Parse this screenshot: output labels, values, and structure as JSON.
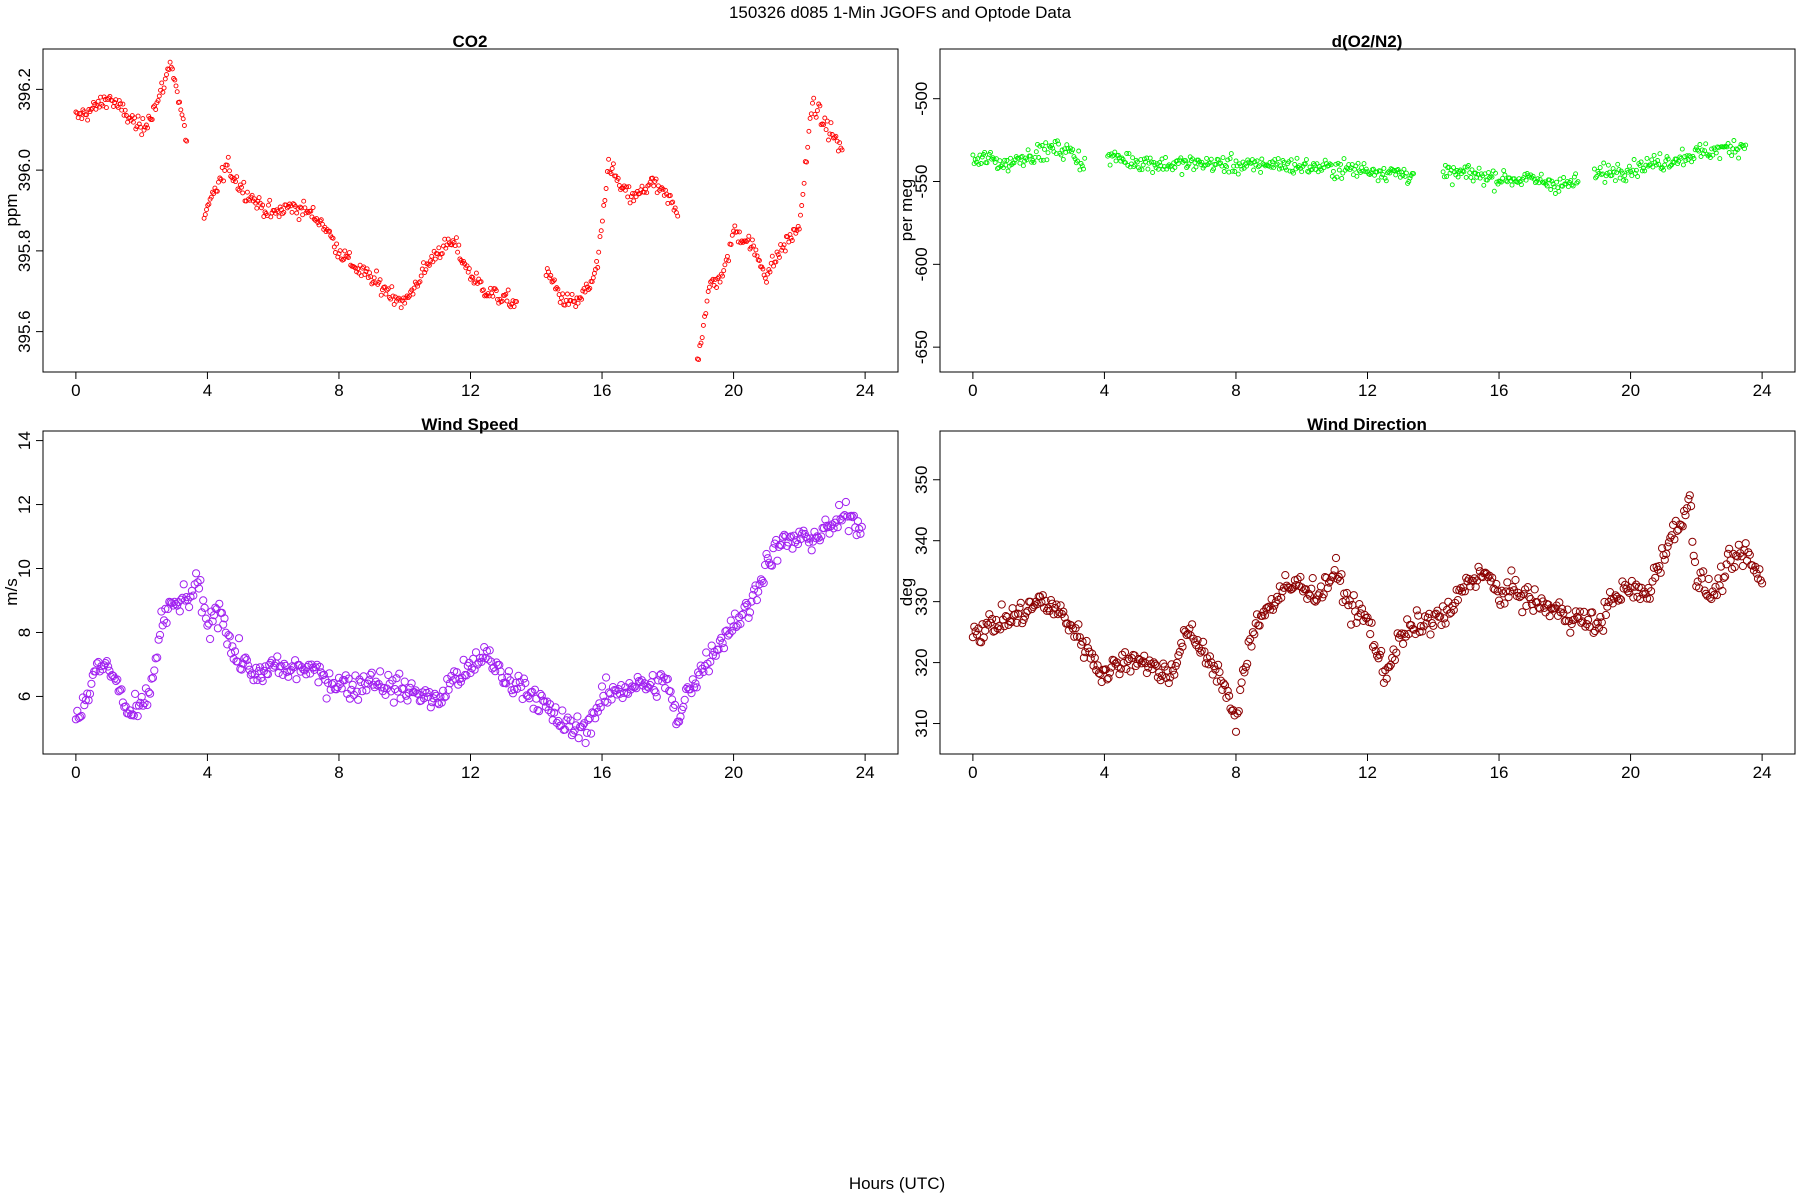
{
  "figure": {
    "title": "150326   d085   1-Min  JGOFS and Optode Data",
    "xlabel": "Hours (UTC)"
  },
  "chart_data": [
    {
      "type": "scatter",
      "title": "CO2",
      "ylabel": "ppm",
      "xlim": [
        -1,
        25
      ],
      "ylim": [
        395.5,
        396.3
      ],
      "xticks": [
        0,
        4,
        8,
        12,
        16,
        20,
        24
      ],
      "yticks": [
        395.6,
        395.8,
        396.0,
        396.2
      ],
      "ytick_labels": [
        "395.6",
        "395.8",
        "396.0",
        "396.2"
      ],
      "color": "#ff0000",
      "marker": "small-open-circle",
      "gaps": [
        [
          3.4,
          3.9
        ],
        [
          13.4,
          14.3
        ],
        [
          18.3,
          18.9
        ]
      ],
      "series": [
        {
          "x": [
            0,
            0.5,
            1.0,
            1.5,
            2.0,
            2.5,
            2.9,
            3.3,
            3.9,
            4.3,
            4.6,
            5.0,
            5.5,
            6.0,
            6.5,
            7.0,
            7.5,
            8.0,
            8.5,
            9.0,
            9.5,
            10.0,
            10.5,
            11.0,
            11.5,
            12.0,
            12.5,
            13.0,
            13.4,
            14.3,
            14.8,
            15.2,
            15.7,
            15.9,
            16.2,
            16.6,
            17.0,
            17.5,
            18.0,
            18.3,
            18.9,
            19.3,
            19.7,
            20.0,
            20.5,
            21.0,
            21.5,
            22.0,
            22.4,
            22.7,
            23.0,
            23.3
          ],
          "y": [
            396.13,
            396.15,
            396.18,
            396.14,
            396.1,
            396.17,
            396.27,
            396.1,
            395.88,
            395.96,
            396.01,
            395.96,
            395.92,
            395.89,
            395.91,
            395.9,
            395.87,
            395.8,
            395.76,
            395.73,
            395.7,
            395.67,
            395.74,
            395.8,
            395.82,
            395.74,
            395.7,
            395.68,
            395.67,
            395.75,
            395.68,
            395.67,
            395.72,
            395.78,
            396.02,
            395.95,
            395.93,
            395.97,
            395.93,
            395.9,
            395.53,
            395.72,
            395.74,
            395.85,
            395.82,
            395.74,
            395.81,
            395.86,
            396.17,
            396.12,
            396.09,
            396.05
          ]
        }
      ]
    },
    {
      "type": "scatter",
      "title": "d(O2/N2)",
      "ylabel": "per meg",
      "xlim": [
        -1,
        25
      ],
      "ylim": [
        -665,
        -470
      ],
      "xticks": [
        0,
        4,
        8,
        12,
        16,
        20,
        24
      ],
      "yticks": [
        -650,
        -600,
        -550,
        -500
      ],
      "ytick_labels": [
        "-650",
        "-600",
        "-550",
        "-500"
      ],
      "color": "#00ee00",
      "marker": "small-open-circle",
      "gaps": [
        [
          3.4,
          4.1
        ],
        [
          13.4,
          14.3
        ],
        [
          18.4,
          18.9
        ]
      ],
      "series": [
        {
          "x": [
            0,
            0.5,
            1.0,
            1.5,
            2.0,
            2.5,
            3.0,
            3.4,
            4.1,
            5.0,
            6.0,
            7.0,
            8.0,
            8.5,
            9.0,
            10.0,
            11.0,
            12.0,
            13.0,
            13.4,
            14.3,
            15.0,
            16.0,
            17.0,
            18.0,
            18.4,
            18.9,
            20.0,
            21.0,
            22.0,
            23.0,
            23.5
          ],
          "y": [
            -538,
            -536,
            -540,
            -535,
            -533,
            -530,
            -532,
            -540,
            -535,
            -538,
            -540,
            -539,
            -540,
            -541,
            -539,
            -541,
            -542,
            -543,
            -545,
            -546,
            -546,
            -545,
            -548,
            -549,
            -552,
            -550,
            -546,
            -542,
            -538,
            -533,
            -530,
            -528
          ]
        }
      ]
    },
    {
      "type": "scatter",
      "title": "Wind Speed",
      "ylabel": "m/s",
      "xlim": [
        -1,
        25
      ],
      "ylim": [
        4.2,
        14.3
      ],
      "xticks": [
        0,
        4,
        8,
        12,
        16,
        20,
        24
      ],
      "yticks": [
        6,
        8,
        10,
        12,
        14
      ],
      "ytick_labels": [
        "6",
        "8",
        "10",
        "12",
        "14"
      ],
      "color": "#a020f0",
      "marker": "open-circle",
      "series": [
        {
          "x": [
            0,
            0.3,
            0.6,
            0.9,
            1.3,
            1.6,
            2.0,
            2.3,
            2.6,
            3.0,
            3.4,
            3.7,
            4.0,
            4.4,
            4.8,
            5.2,
            5.6,
            6.0,
            6.5,
            7.0,
            7.5,
            8.0,
            8.5,
            9.0,
            9.5,
            10.0,
            10.5,
            11.0,
            11.5,
            12.0,
            12.5,
            13.0,
            13.5,
            14.0,
            14.5,
            15.0,
            15.5,
            16.0,
            16.5,
            17.0,
            17.5,
            18.0,
            18.3,
            18.6,
            19.0,
            19.5,
            20.0,
            20.5,
            21.0,
            21.5,
            22.0,
            22.5,
            23.0,
            23.5,
            23.9
          ],
          "y": [
            5.4,
            5.8,
            6.8,
            7.0,
            6.3,
            5.4,
            5.6,
            6.3,
            8.3,
            8.9,
            9.0,
            9.5,
            8.2,
            8.8,
            7.3,
            7.0,
            6.5,
            7.0,
            6.8,
            6.9,
            6.6,
            6.4,
            6.3,
            6.6,
            6.3,
            6.2,
            6.1,
            5.8,
            6.6,
            6.8,
            7.4,
            6.5,
            6.4,
            6.0,
            5.4,
            5.0,
            5.0,
            5.9,
            6.2,
            6.4,
            6.3,
            6.5,
            5.0,
            6.2,
            6.8,
            7.6,
            8.3,
            8.8,
            10.2,
            10.8,
            10.9,
            11.0,
            11.3,
            11.7,
            11.3
          ]
        }
      ]
    },
    {
      "type": "scatter",
      "title": "Wind Direction",
      "ylabel": "deg",
      "xlim": [
        -1,
        25
      ],
      "ylim": [
        305,
        358
      ],
      "xticks": [
        0,
        4,
        8,
        12,
        16,
        20,
        24
      ],
      "yticks": [
        310,
        320,
        330,
        340,
        350
      ],
      "ytick_labels": [
        "310",
        "320",
        "330",
        "340",
        "350"
      ],
      "color": "#8b0000",
      "marker": "open-circle",
      "series": [
        {
          "x": [
            0,
            0.5,
            1.0,
            1.5,
            2.0,
            2.5,
            3.0,
            3.5,
            4.0,
            4.5,
            5.0,
            5.5,
            6.0,
            6.5,
            7.0,
            7.5,
            8.0,
            8.3,
            8.6,
            9.0,
            9.5,
            10.0,
            10.5,
            11.0,
            11.5,
            12.0,
            12.5,
            13.0,
            13.5,
            14.0,
            14.5,
            15.0,
            15.5,
            16.0,
            16.5,
            17.0,
            17.5,
            18.0,
            18.5,
            19.0,
            19.5,
            20.0,
            20.5,
            21.0,
            21.5,
            21.8,
            22.0,
            22.5,
            23.0,
            23.5,
            24.0
          ],
          "y": [
            325,
            326,
            327,
            328,
            330,
            329,
            326,
            322,
            318,
            320,
            321,
            319,
            318,
            325,
            322,
            318,
            310,
            320,
            327,
            329,
            332,
            333,
            331,
            335,
            329,
            327,
            318,
            324,
            326,
            327,
            328,
            333,
            335,
            331,
            332,
            330,
            329,
            328,
            327,
            326,
            331,
            332,
            331,
            338,
            343,
            347,
            334,
            331,
            336,
            338,
            333
          ]
        }
      ]
    }
  ]
}
